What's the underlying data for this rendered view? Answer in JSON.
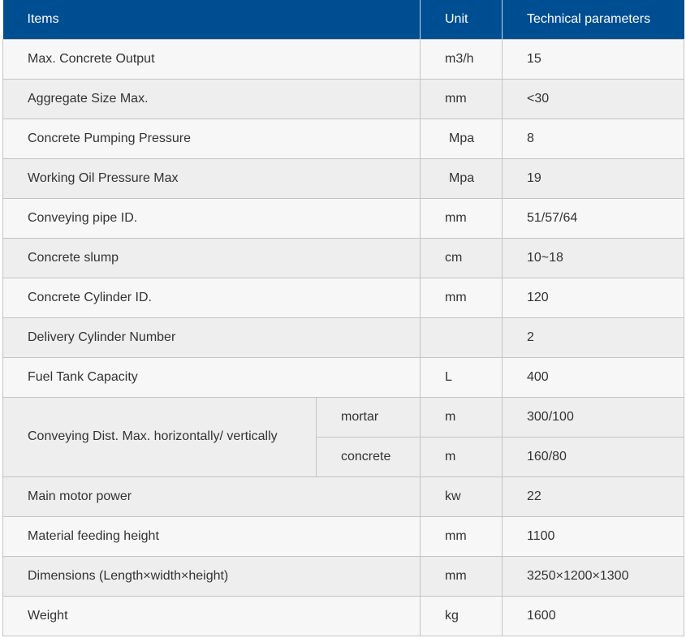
{
  "header": {
    "items": "Items",
    "unit": "Unit",
    "params": "Technical parameters"
  },
  "rows": [
    {
      "item": "Max. Concrete Output",
      "unit": "m3/h",
      "value": "15"
    },
    {
      "item": "Aggregate Size Max.",
      "unit": "mm",
      "value": "<30"
    },
    {
      "item": "Concrete Pumping Pressure",
      "unit": "Mpa",
      "value": "8"
    },
    {
      "item": "Working Oil Pressure Max",
      "unit": "Mpa",
      "value": "19"
    },
    {
      "item": "Conveying pipe ID.",
      "unit": "mm",
      "value": "51/57/64"
    },
    {
      "item": "Concrete slump",
      "unit": "cm",
      "value": "10~18"
    },
    {
      "item": "Concrete Cylinder ID.",
      "unit": "mm",
      "value": "120"
    },
    {
      "item": "Delivery Cylinder Number",
      "unit": "",
      "value": "2"
    },
    {
      "item": "Fuel Tank Capacity",
      "unit": "L",
      "value": "400"
    }
  ],
  "conveying": {
    "item": "Conveying Dist. Max. horizontally/ vertically",
    "mortar": {
      "sub": "mortar",
      "unit": "m",
      "value": "300/100"
    },
    "concrete": {
      "sub": "concrete",
      "unit": "m",
      "value": "160/80"
    }
  },
  "rows_after": [
    {
      "item": "Main motor power",
      "unit": "kw",
      "value": "22"
    },
    {
      "item": "Material feeding height",
      "unit": "mm",
      "value": "1100"
    },
    {
      "item": "Dimensions (Length×width×height)",
      "unit": "mm",
      "value": "3250×1200×1300"
    },
    {
      "item": "Weight",
      "unit": "kg",
      "value": "1600"
    }
  ]
}
